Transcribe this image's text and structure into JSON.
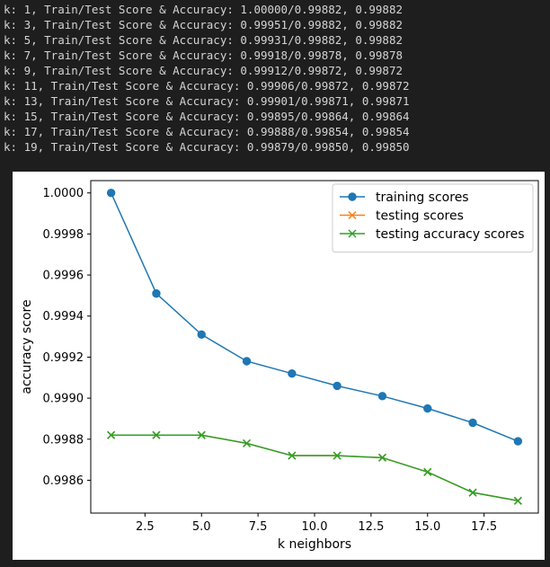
{
  "output": {
    "lines": [
      "k: 1, Train/Test Score & Accuracy: 1.00000/0.99882, 0.99882",
      "k: 3, Train/Test Score & Accuracy: 0.99951/0.99882, 0.99882",
      "k: 5, Train/Test Score & Accuracy: 0.99931/0.99882, 0.99882",
      "k: 7, Train/Test Score & Accuracy: 0.99918/0.99878, 0.99878",
      "k: 9, Train/Test Score & Accuracy: 0.99912/0.99872, 0.99872",
      "k: 11, Train/Test Score & Accuracy: 0.99906/0.99872, 0.99872",
      "k: 13, Train/Test Score & Accuracy: 0.99901/0.99871, 0.99871",
      "k: 15, Train/Test Score & Accuracy: 0.99895/0.99864, 0.99864",
      "k: 17, Train/Test Score & Accuracy: 0.99888/0.99854, 0.99854",
      "k: 19, Train/Test Score & Accuracy: 0.99879/0.99850, 0.99850"
    ]
  },
  "chart_data": {
    "type": "line",
    "title": "",
    "xlabel": "k neighbors",
    "ylabel": "accuracy score",
    "xlim": [
      0.1,
      19.9
    ],
    "ylim": [
      0.99844,
      1.00006
    ],
    "xticks": [
      2.5,
      5.0,
      7.5,
      10.0,
      12.5,
      15.0,
      17.5
    ],
    "xtick_labels": [
      "2.5",
      "5.0",
      "7.5",
      "10.0",
      "12.5",
      "15.0",
      "17.5"
    ],
    "yticks": [
      0.9986,
      0.9988,
      0.999,
      0.9992,
      0.9994,
      0.9996,
      0.9998,
      1.0
    ],
    "ytick_labels": [
      "0.9986",
      "0.9988",
      "0.9990",
      "0.9992",
      "0.9994",
      "0.9996",
      "0.9998",
      "1.0000"
    ],
    "grid": false,
    "legend_position": "top-right",
    "x": [
      1,
      3,
      5,
      7,
      9,
      11,
      13,
      15,
      17,
      19
    ],
    "series": [
      {
        "name": "training scores",
        "marker": "circle",
        "color": "#1f77b4",
        "values": [
          1.0,
          0.99951,
          0.99931,
          0.99918,
          0.99912,
          0.99906,
          0.99901,
          0.99895,
          0.99888,
          0.99879
        ]
      },
      {
        "name": "testing scores",
        "marker": "x",
        "color": "#ff7f0e",
        "values": [
          0.99882,
          0.99882,
          0.99882,
          0.99878,
          0.99872,
          0.99872,
          0.99871,
          0.99864,
          0.99854,
          0.9985
        ]
      },
      {
        "name": "testing accuracy scores",
        "marker": "x",
        "color": "#2ca02c",
        "values": [
          0.99882,
          0.99882,
          0.99882,
          0.99878,
          0.99872,
          0.99872,
          0.99871,
          0.99864,
          0.99854,
          0.9985
        ]
      }
    ]
  }
}
